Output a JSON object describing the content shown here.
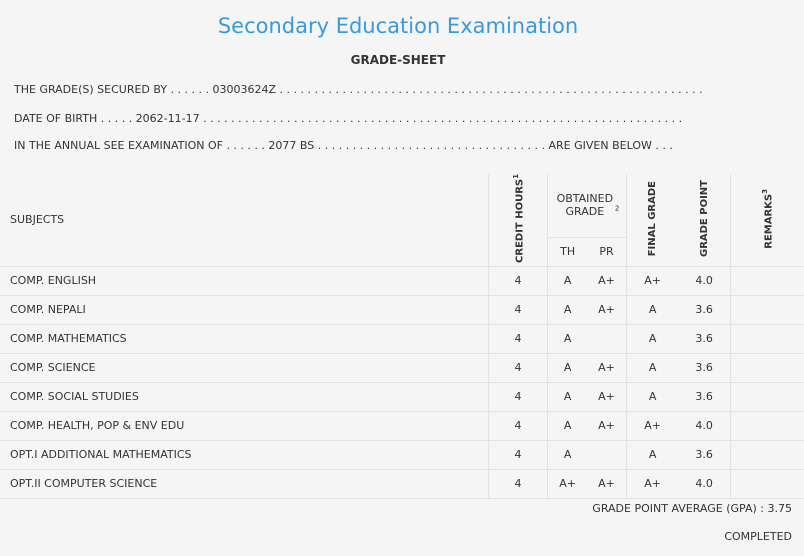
{
  "header": {
    "title": "Secondary Education Examination",
    "subtitle": "GRADE-SHEET"
  },
  "info": {
    "line1": "THE GRADE(S) SECURED BY . . . . . . 03003624Z . . . . . . . . . . . . . . . . . . . . . . . . . . . . . . . . . . . . . . . . . . . . . . . . . . . . . . . . . . . . .",
    "line2": "DATE OF BIRTH . . . . . 2062-11-17 . . . . . . . . . . . . . . . . . . . . . . . . . . . . . . . . . . . . . . . . . . . . . . . . . . . . . . . . . . . . . . . . . . . . .",
    "line3": "IN THE ANNUAL SEE EXAMINATION OF . . . . . . 2077 BS . . . . . . . . . . . . . . . . . . . . . . . . . . . . . . . . . ARE GIVEN BELOW . . ."
  },
  "table": {
    "headers": {
      "subjects": "SUBJECTS",
      "credit_hours": "CREDIT HOURS",
      "credit_sup": "1",
      "obtained_grade": "OBTAINED GRADE",
      "obtained_sup": "2",
      "th": "TH",
      "pr": "PR",
      "final_grade": "FINAL GRADE",
      "grade_point": "GRADE POINT",
      "remarks": "REMARKS",
      "remarks_sup": "3"
    },
    "rows": [
      {
        "subject": "COMP. ENGLISH",
        "credit": "4",
        "th": "A",
        "pr": "A+",
        "final": "A+",
        "gp": "4.0",
        "remarks": ""
      },
      {
        "subject": "COMP. NEPALI",
        "credit": "4",
        "th": "A",
        "pr": "A+",
        "final": "A",
        "gp": "3.6",
        "remarks": ""
      },
      {
        "subject": "COMP. MATHEMATICS",
        "credit": "4",
        "th": "A",
        "pr": "",
        "final": "A",
        "gp": "3.6",
        "remarks": ""
      },
      {
        "subject": "COMP. SCIENCE",
        "credit": "4",
        "th": "A",
        "pr": "A+",
        "final": "A",
        "gp": "3.6",
        "remarks": ""
      },
      {
        "subject": "COMP. SOCIAL STUDIES",
        "credit": "4",
        "th": "A",
        "pr": "A+",
        "final": "A",
        "gp": "3.6",
        "remarks": ""
      },
      {
        "subject": "COMP. HEALTH, POP & ENV EDU",
        "credit": "4",
        "th": "A",
        "pr": "A+",
        "final": "A+",
        "gp": "4.0",
        "remarks": ""
      },
      {
        "subject": "OPT.I ADDITIONAL MATHEMATICS",
        "credit": "4",
        "th": "A",
        "pr": "",
        "final": "A",
        "gp": "3.6",
        "remarks": ""
      },
      {
        "subject": "OPT.II COMPUTER SCIENCE",
        "credit": "4",
        "th": "A+",
        "pr": "A+",
        "final": "A+",
        "gp": "4.0",
        "remarks": ""
      }
    ]
  },
  "footer": {
    "gpa": "GRADE POINT AVERAGE (GPA) : 3.75",
    "status": "COMPLETED"
  }
}
